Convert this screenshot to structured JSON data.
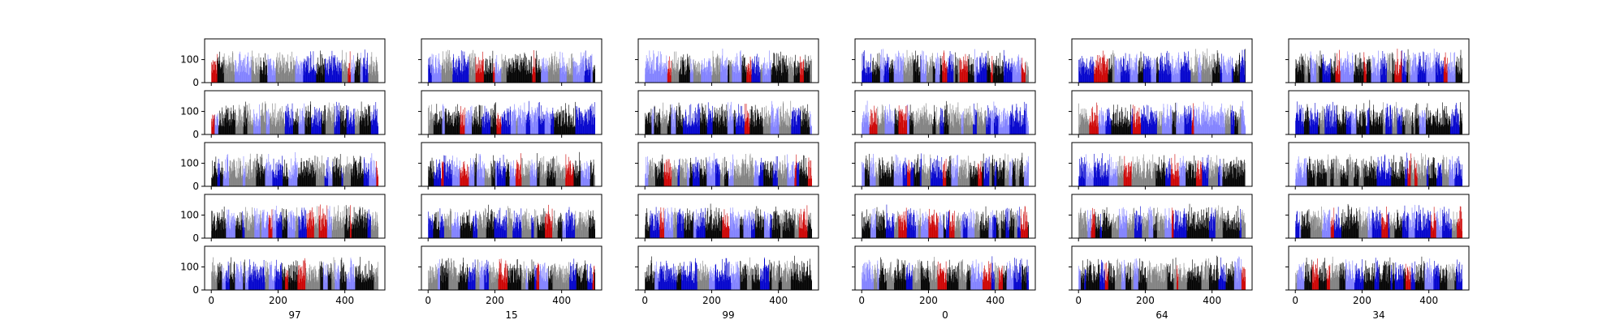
{
  "chart_data": {
    "type": "bar",
    "layout": {
      "rows": 5,
      "cols": 6,
      "sharex": true,
      "sharey": true
    },
    "xlim": [
      -20,
      520
    ],
    "ylim": [
      0,
      190
    ],
    "xticks": [
      0,
      200,
      400
    ],
    "xtick_labels": [
      "0",
      "200",
      "400"
    ],
    "yticks": [
      0,
      100
    ],
    "ytick_labels": [
      "0",
      "100"
    ],
    "n_bars": 500,
    "bar_value_range": [
      0,
      150
    ],
    "bar_colors": [
      "#000000",
      "#808080",
      "#0000cc",
      "#8080ff",
      "#cc0000"
    ],
    "column_xlabels": [
      "97",
      "15",
      "99",
      "0",
      "64",
      "34"
    ],
    "grid": false,
    "legend": false
  }
}
